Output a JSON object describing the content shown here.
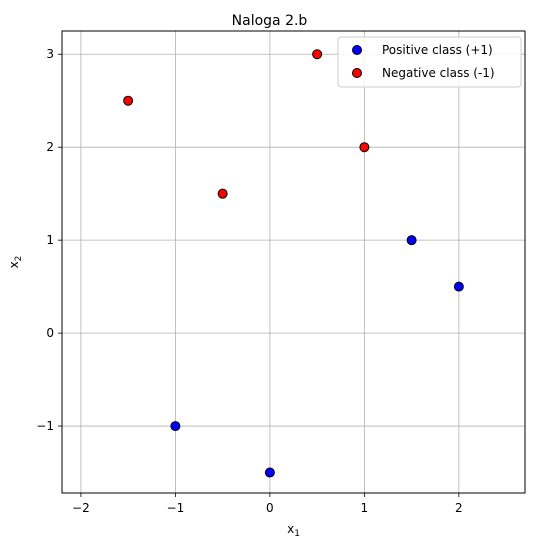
{
  "chart_data": {
    "type": "scatter",
    "title": "Naloga 2.b",
    "xlabel": {
      "base": "x",
      "sub": "1"
    },
    "ylabel": {
      "base": "x",
      "sub": "2"
    },
    "xlim": [
      -2.2,
      2.7
    ],
    "ylim": [
      -1.72,
      3.25
    ],
    "xticks": [
      -2,
      -1,
      0,
      1,
      2
    ],
    "yticks": [
      -1,
      0,
      1,
      2,
      3
    ],
    "xtick_labels": [
      "−2",
      "−1",
      "0",
      "1",
      "2"
    ],
    "ytick_labels": [
      "−1",
      "0",
      "1",
      "2",
      "3"
    ],
    "grid": true,
    "legend_position": "top-right",
    "series": [
      {
        "name": "Positive class (+1)",
        "color": "#0000ff",
        "points": [
          [
            -1,
            -1
          ],
          [
            0,
            -1.5
          ],
          [
            1.5,
            1
          ],
          [
            2,
            0.5
          ]
        ]
      },
      {
        "name": "Negative class (-1)",
        "color": "#ff0000",
        "points": [
          [
            -1.5,
            2.5
          ],
          [
            -0.5,
            1.5
          ],
          [
            0.5,
            3
          ],
          [
            1,
            2
          ]
        ]
      }
    ]
  }
}
